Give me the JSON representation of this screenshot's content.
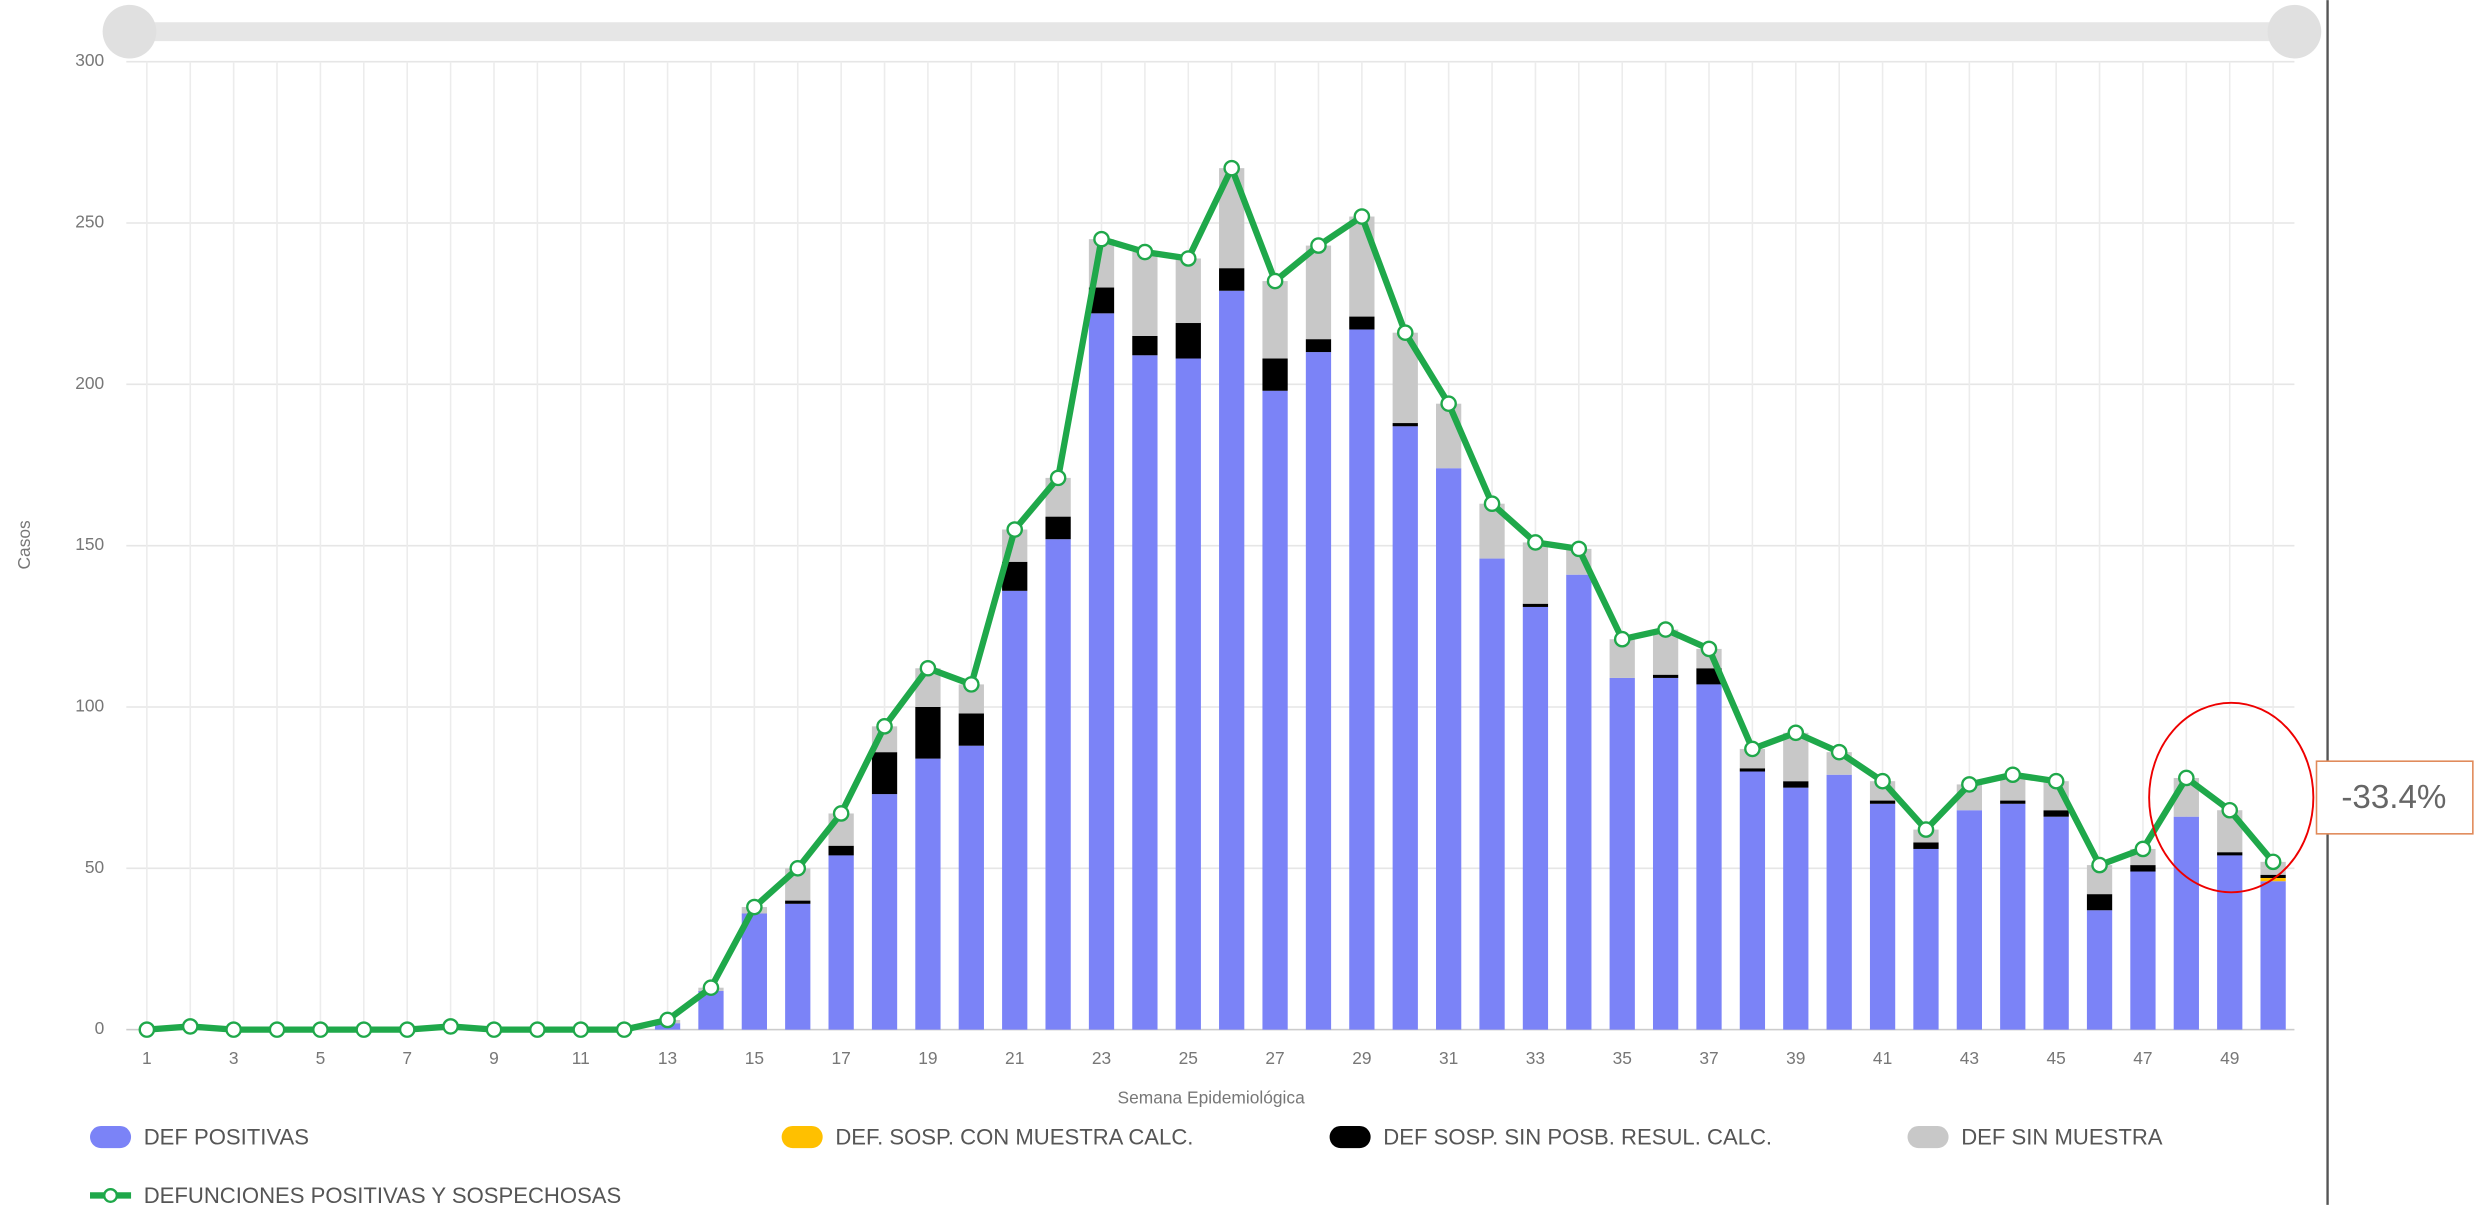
{
  "chart_data": {
    "type": "bar",
    "stacked": true,
    "x_label": "Semana Epidemiológica",
    "y_label": "Casos",
    "annotation": "-33.4%",
    "annotation_color": "#ff0000",
    "grid": true,
    "ylim": [
      0,
      300
    ],
    "yticks": [
      0,
      50,
      100,
      150,
      200,
      250,
      300
    ],
    "categories": [
      "1",
      null,
      "3",
      null,
      "5",
      null,
      "7",
      null,
      "9",
      null,
      "11",
      null,
      "13",
      null,
      "15",
      null,
      "17",
      null,
      "19",
      null,
      "21",
      null,
      "23",
      null,
      "25",
      null,
      "27",
      null,
      "29",
      null,
      "31",
      null,
      "33",
      null,
      "35",
      null,
      "37",
      null,
      "39",
      null,
      "41",
      null,
      "43",
      null,
      "45",
      null,
      "47",
      null,
      "49",
      null
    ],
    "series": [
      {
        "name": "DEF POSITIVAS",
        "color": "#7b83f7",
        "values": [
          0,
          0,
          0,
          0,
          0,
          0,
          0,
          0,
          0,
          0,
          0,
          0,
          2,
          12,
          36,
          39,
          54,
          73,
          84,
          88,
          136,
          152,
          222,
          209,
          208,
          229,
          198,
          210,
          217,
          187,
          174,
          146,
          131,
          141,
          109,
          109,
          107,
          80,
          75,
          79,
          70,
          56,
          68,
          70,
          66,
          37,
          49,
          66,
          54,
          46
        ]
      },
      {
        "name": "DEF. SOSP. CON MUESTRA CALC.",
        "color": "#ffc000",
        "values": [
          0,
          0,
          0,
          0,
          0,
          0,
          0,
          0,
          0,
          0,
          0,
          0,
          0,
          0,
          0,
          0,
          0,
          0,
          0,
          0,
          0,
          0,
          0,
          0,
          0,
          0,
          0,
          0,
          0,
          0,
          0,
          0,
          0,
          0,
          0,
          0,
          0,
          0,
          0,
          0,
          0,
          0,
          0,
          0,
          0,
          0,
          0,
          0,
          0,
          1
        ]
      },
      {
        "name": "DEF SOSP. SIN POSB. RESUL. CALC.",
        "color": "#000000",
        "values": [
          0,
          0,
          0,
          0,
          0,
          0,
          0,
          0,
          0,
          0,
          0,
          0,
          0,
          0,
          0,
          1,
          3,
          13,
          16,
          10,
          9,
          7,
          8,
          6,
          11,
          7,
          10,
          4,
          4,
          1,
          0,
          0,
          1,
          0,
          0,
          1,
          5,
          1,
          2,
          0,
          1,
          2,
          0,
          1,
          2,
          5,
          2,
          0,
          1,
          1
        ]
      },
      {
        "name": "DEF SIN MUESTRA",
        "color": "#c8c8c8",
        "values": [
          0,
          1,
          0,
          0,
          0,
          0,
          0,
          1,
          0,
          0,
          0,
          0,
          1,
          1,
          2,
          10,
          10,
          8,
          12,
          9,
          10,
          12,
          15,
          26,
          20,
          31,
          24,
          29,
          31,
          28,
          20,
          17,
          19,
          8,
          12,
          14,
          6,
          6,
          15,
          7,
          6,
          4,
          8,
          8,
          9,
          9,
          5,
          12,
          13,
          4
        ]
      },
      {
        "name": "DEFUNCIONES POSITIVAS Y SOSPECHOSAS",
        "color": "#1fa84a",
        "type": "line",
        "values": [
          0,
          1,
          0,
          0,
          0,
          0,
          0,
          1,
          0,
          0,
          0,
          0,
          3,
          13,
          38,
          50,
          67,
          94,
          112,
          107,
          155,
          171,
          245,
          241,
          239,
          267,
          232,
          243,
          252,
          216,
          194,
          163,
          151,
          149,
          121,
          124,
          118,
          87,
          92,
          86,
          77,
          62,
          76,
          79,
          77,
          51,
          56,
          78,
          68,
          52
        ]
      }
    ]
  }
}
